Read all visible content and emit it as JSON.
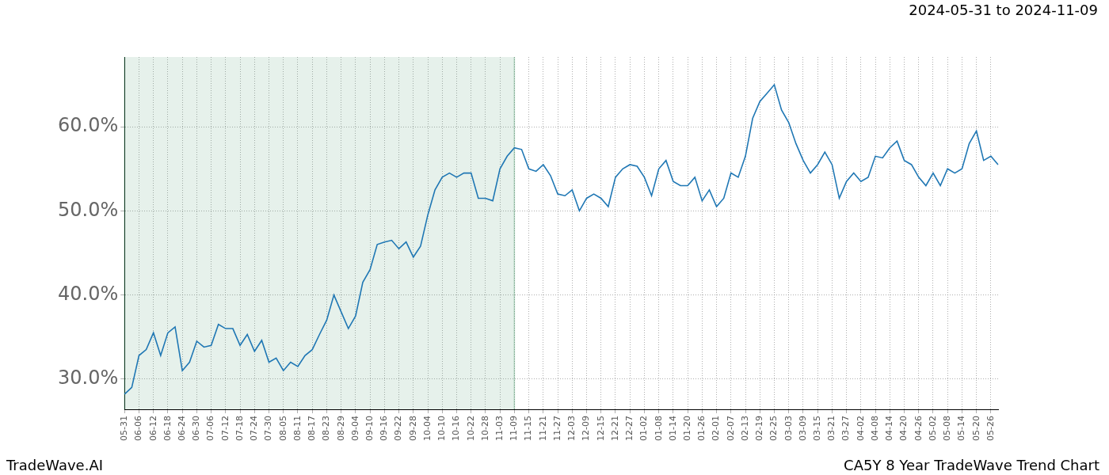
{
  "chart_data": {
    "type": "line",
    "subtitle": "2024-05-31 to 2024-11-09",
    "footer_left": "TradeWave.AI",
    "footer_right": "CA5Y 8 Year TradeWave Trend Chart",
    "categories": [
      "05-31",
      null,
      "06-06",
      null,
      "06-12",
      null,
      "06-18",
      null,
      "06-24",
      null,
      "06-30",
      null,
      "07-06",
      null,
      "07-12",
      null,
      "07-18",
      null,
      "07-24",
      null,
      "07-30",
      null,
      "08-05",
      null,
      "08-11",
      null,
      "08-17",
      null,
      "08-23",
      null,
      "08-29",
      null,
      "09-04",
      null,
      "09-10",
      null,
      "09-16",
      null,
      "09-22",
      null,
      "09-28",
      null,
      "10-04",
      null,
      "10-10",
      null,
      "10-16",
      null,
      "10-22",
      null,
      "10-28",
      null,
      "11-03",
      null,
      "11-09",
      null,
      "11-15",
      null,
      "11-21",
      null,
      "11-27",
      null,
      "12-03",
      null,
      "12-09",
      null,
      "12-15",
      null,
      "12-21",
      null,
      "12-27",
      null,
      "01-02",
      null,
      "01-08",
      null,
      "01-14",
      null,
      "01-20",
      null,
      "01-26",
      null,
      "02-01",
      null,
      "02-07",
      null,
      "02-13",
      null,
      "02-19",
      null,
      "02-25",
      null,
      "03-03",
      null,
      "03-09",
      null,
      "03-15",
      null,
      "03-21",
      null,
      "03-27",
      null,
      "04-02",
      null,
      "04-08",
      null,
      "04-14",
      null,
      "04-20",
      null,
      "04-26",
      null,
      "05-02",
      null,
      "05-08",
      null,
      "05-14",
      null,
      "05-20",
      null,
      "05-26",
      null
    ],
    "values": [
      28.2,
      29,
      32.8,
      33.5,
      35.5,
      32.8,
      35.5,
      36.2,
      31,
      32,
      34.5,
      33.8,
      34,
      36.5,
      36,
      36,
      34,
      35.3,
      33.3,
      34.6,
      32,
      32.5,
      31,
      32,
      31.5,
      32.8,
      33.5,
      35.3,
      37,
      40,
      38,
      36,
      37.5,
      41.5,
      43,
      46,
      46.3,
      46.5,
      45.5,
      46.3,
      44.5,
      45.8,
      49.5,
      52.5,
      54,
      54.5,
      54,
      54.5,
      54.5,
      51.5,
      51.5,
      51.2,
      55,
      56.5,
      57.5,
      57.3,
      55,
      54.7,
      55.5,
      54.2,
      52,
      51.8,
      52.5,
      50,
      51.5,
      52,
      51.5,
      50.5,
      54,
      55,
      55.5,
      55.3,
      54,
      51.8,
      55,
      56,
      53.5,
      53,
      53,
      54,
      51.2,
      52.5,
      50.5,
      51.5,
      54.5,
      54,
      56.5,
      61,
      63,
      64,
      65,
      62,
      60.5,
      58,
      56,
      54.5,
      55.5,
      57,
      55.5,
      51.5,
      53.5,
      54.5,
      53.5,
      54,
      56.5,
      56.3,
      57.5,
      58.3,
      56,
      55.5,
      54,
      53,
      54.5,
      53,
      55,
      54.5,
      55,
      58,
      59.5,
      56,
      56.5,
      55.5
    ],
    "color": "#1f77b4",
    "shaded_range": [
      "05-31",
      "11-09"
    ],
    "ylim": [
      26.4,
      68.3
    ],
    "yticks": [
      {
        "value": 30,
        "label": "30.0%"
      },
      {
        "value": 40,
        "label": "40.0%"
      },
      {
        "value": 50,
        "label": "50.0%"
      },
      {
        "value": 60,
        "label": "60.0%"
      }
    ],
    "grid": true
  }
}
